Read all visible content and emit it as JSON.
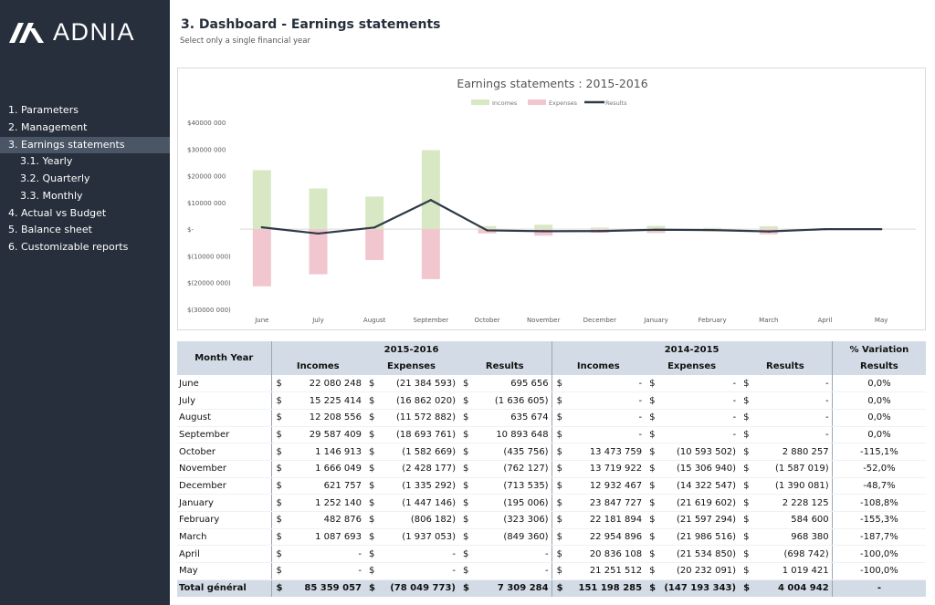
{
  "brand": {
    "name": "ADNIA"
  },
  "sidebar": {
    "items": [
      {
        "label": "1. Parameters",
        "active": false
      },
      {
        "label": "2. Management",
        "active": false
      },
      {
        "label": "3. Earnings statements",
        "active": true
      },
      {
        "label": "3.1. Yearly",
        "active": false
      },
      {
        "label": "3.2. Quarterly",
        "active": false
      },
      {
        "label": "3.3. Monthly",
        "active": false
      },
      {
        "label": "4. Actual vs Budget",
        "active": false
      },
      {
        "label": "5. Balance sheet",
        "active": false
      },
      {
        "label": "6. Customizable reports",
        "active": false
      }
    ]
  },
  "header": {
    "title": "3. Dashboard - Earnings statements",
    "subtitle": "Select only a single financial year"
  },
  "colors": {
    "incomes": "#d8e8c4",
    "expenses": "#f2c6ce",
    "results": "#2f3a46",
    "header_bg": "#d3dce6",
    "sidebar_bg": "#262f3b"
  },
  "chart_data": {
    "type": "bar",
    "title": "Earnings statements : 2015-2016",
    "categories": [
      "June",
      "July",
      "August",
      "September",
      "October",
      "November",
      "December",
      "January",
      "February",
      "March",
      "April",
      "May"
    ],
    "series": [
      {
        "name": "Incomes",
        "type": "bar",
        "values": [
          22080248,
          15225414,
          12208556,
          29587409,
          1146913,
          1666049,
          621757,
          1252140,
          482876,
          1087693,
          0,
          0
        ]
      },
      {
        "name": "Expenses",
        "type": "bar",
        "values": [
          -21384593,
          -16862020,
          -11572882,
          -18693761,
          -1582669,
          -2428177,
          -1335292,
          -1447146,
          -806182,
          -1937053,
          0,
          0
        ]
      },
      {
        "name": "Results",
        "type": "line",
        "values": [
          695656,
          -1636605,
          635674,
          10893648,
          -435756,
          -762127,
          -713535,
          -195006,
          -323306,
          -849360,
          0,
          0
        ]
      }
    ],
    "ylim": [
      -30000000,
      40000000
    ],
    "yticks": [
      40000000,
      30000000,
      20000000,
      10000000,
      0,
      -10000000,
      -20000000,
      -30000000
    ],
    "ytick_labels": [
      "$40000 000",
      "$30000 000",
      "$20000 000",
      "$10000 000",
      "$-",
      "$(10000 000)",
      "$(20000 000)",
      "$(30000 000)"
    ],
    "legend_position": "top",
    "grid": false
  },
  "table": {
    "header_month": "Month Year",
    "years": [
      "2015-2016",
      "2014-2015"
    ],
    "variation_header": "% Variation",
    "columns": [
      "Incomes",
      "Expenses",
      "Results",
      "Incomes",
      "Expenses",
      "Results",
      "Results"
    ],
    "currency": "$",
    "rows": [
      {
        "month": "June",
        "cells": [
          "22 080 248",
          "(21 384 593)",
          "695 656",
          "-",
          "-",
          "-"
        ],
        "variation": "0,0%"
      },
      {
        "month": "July",
        "cells": [
          "15 225 414",
          "(16 862 020)",
          "(1 636 605)",
          "-",
          "-",
          "-"
        ],
        "variation": "0,0%"
      },
      {
        "month": "August",
        "cells": [
          "12 208 556",
          "(11 572 882)",
          "635 674",
          "-",
          "-",
          "-"
        ],
        "variation": "0,0%"
      },
      {
        "month": "September",
        "cells": [
          "29 587 409",
          "(18 693 761)",
          "10 893 648",
          "-",
          "-",
          "-"
        ],
        "variation": "0,0%"
      },
      {
        "month": "October",
        "cells": [
          "1 146 913",
          "(1 582 669)",
          "(435 756)",
          "13 473 759",
          "(10 593 502)",
          "2 880 257"
        ],
        "variation": "-115,1%"
      },
      {
        "month": "November",
        "cells": [
          "1 666 049",
          "(2 428 177)",
          "(762 127)",
          "13 719 922",
          "(15 306 940)",
          "(1 587 019)"
        ],
        "variation": "-52,0%"
      },
      {
        "month": "December",
        "cells": [
          "621 757",
          "(1 335 292)",
          "(713 535)",
          "12 932 467",
          "(14 322 547)",
          "(1 390 081)"
        ],
        "variation": "-48,7%"
      },
      {
        "month": "January",
        "cells": [
          "1 252 140",
          "(1 447 146)",
          "(195 006)",
          "23 847 727",
          "(21 619 602)",
          "2 228 125"
        ],
        "variation": "-108,8%"
      },
      {
        "month": "February",
        "cells": [
          "482 876",
          "(806 182)",
          "(323 306)",
          "22 181 894",
          "(21 597 294)",
          "584 600"
        ],
        "variation": "-155,3%"
      },
      {
        "month": "March",
        "cells": [
          "1 087 693",
          "(1 937 053)",
          "(849 360)",
          "22 954 896",
          "(21 986 516)",
          "968 380"
        ],
        "variation": "-187,7%"
      },
      {
        "month": "April",
        "cells": [
          "-",
          "-",
          "-",
          "20 836 108",
          "(21 534 850)",
          "(698 742)"
        ],
        "variation": "-100,0%"
      },
      {
        "month": "May",
        "cells": [
          "-",
          "-",
          "-",
          "21 251 512",
          "(20 232 091)",
          "1 019 421"
        ],
        "variation": "-100,0%"
      }
    ],
    "total": {
      "label": "Total général",
      "cells": [
        "85 359 057",
        "(78 049 773)",
        "7 309 284",
        "151 198 285",
        "(147 193 343)",
        "4 004 942"
      ],
      "variation": "-"
    }
  }
}
